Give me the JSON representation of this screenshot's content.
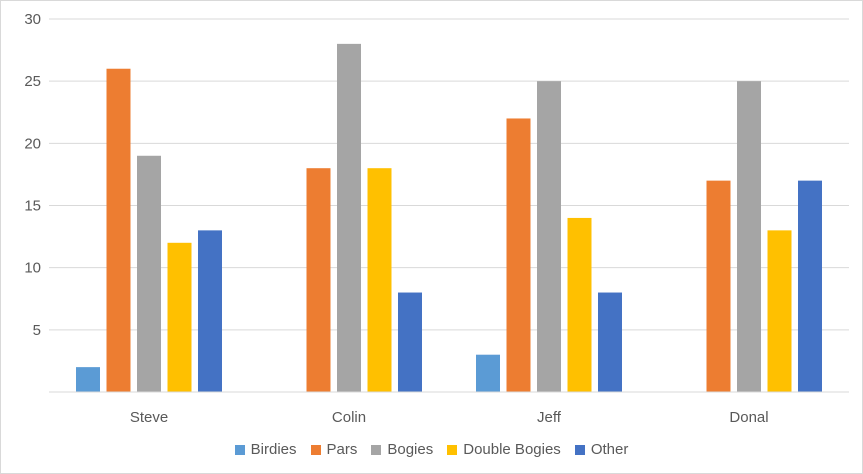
{
  "chart_data": {
    "type": "bar",
    "categories": [
      "Steve",
      "Colin",
      "Jeff",
      "Donal"
    ],
    "series": [
      {
        "name": "Birdies",
        "color": "#5b9bd5",
        "values": [
          2,
          0,
          3,
          0
        ]
      },
      {
        "name": "Pars",
        "color": "#ed7d31",
        "values": [
          26,
          18,
          22,
          17
        ]
      },
      {
        "name": "Bogies",
        "color": "#a5a5a5",
        "values": [
          19,
          28,
          25,
          25
        ]
      },
      {
        "name": "Double Bogies",
        "color": "#ffc000",
        "values": [
          12,
          18,
          14,
          13
        ]
      },
      {
        "name": "Other",
        "color": "#4472c4",
        "values": [
          13,
          8,
          8,
          17
        ]
      }
    ],
    "ylim": [
      0,
      30
    ],
    "yticks": [
      5,
      10,
      15,
      20,
      25,
      30
    ],
    "grid": true,
    "legend_position": "bottom",
    "title": "",
    "xlabel": "",
    "ylabel": ""
  }
}
